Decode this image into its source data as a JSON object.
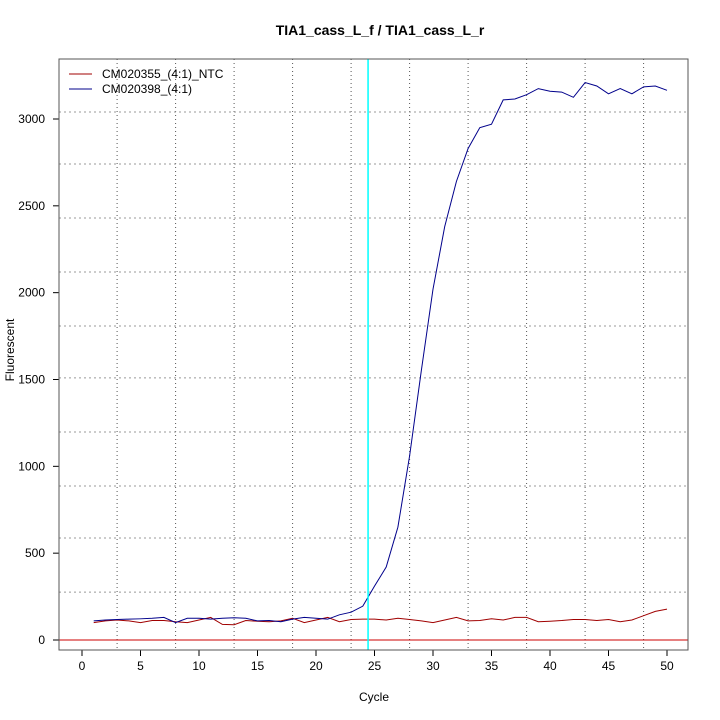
{
  "chart_data": {
    "type": "line",
    "title": "TIA1_cass_L_f / TIA1_cass_L_r",
    "xlabel": "Cycle",
    "ylabel": "Fluorescent",
    "xlim": [
      -2,
      52
    ],
    "ylim": [
      -60,
      3310
    ],
    "xticks": [
      0,
      5,
      10,
      15,
      20,
      25,
      30,
      35,
      40,
      45,
      50
    ],
    "yticks": [
      0,
      500,
      1000,
      1500,
      2000,
      2500,
      3000
    ],
    "grid_x": [
      3,
      8,
      13,
      18,
      23,
      28,
      33,
      38,
      43,
      48
    ],
    "grid_y": [
      276,
      587,
      887,
      1198,
      1509,
      1808,
      2119,
      2430,
      2741,
      3040
    ],
    "threshold_cycle": 24.45,
    "threshold_color": "#00ffff",
    "baseline_value": 0,
    "baseline_color": "#cc0000",
    "legend_position": "top-left",
    "x": [
      1,
      2,
      3,
      4,
      5,
      6,
      7,
      8,
      9,
      10,
      11,
      12,
      13,
      14,
      15,
      16,
      17,
      18,
      19,
      20,
      21,
      22,
      23,
      24,
      25,
      26,
      27,
      28,
      29,
      30,
      31,
      32,
      33,
      34,
      35,
      36,
      37,
      38,
      39,
      40,
      41,
      42,
      43,
      44,
      45,
      46,
      47,
      48,
      49,
      50
    ],
    "series": [
      {
        "name": "CM020355_(4:1)_NTC",
        "color": "#a00000",
        "values": [
          100,
          110,
          115,
          110,
          100,
          112,
          112,
          105,
          100,
          115,
          130,
          90,
          88,
          112,
          108,
          105,
          110,
          125,
          100,
          115,
          130,
          105,
          118,
          120,
          120,
          115,
          125,
          118,
          110,
          100,
          115,
          130,
          110,
          112,
          122,
          115,
          130,
          130,
          105,
          108,
          112,
          118,
          118,
          112,
          118,
          105,
          115,
          140,
          165,
          178
        ]
      },
      {
        "name": "CM020398_(4:1)",
        "color": "#00008b",
        "values": [
          110,
          115,
          118,
          120,
          122,
          125,
          130,
          100,
          125,
          125,
          120,
          125,
          128,
          125,
          110,
          112,
          105,
          120,
          130,
          125,
          120,
          145,
          160,
          195,
          310,
          420,
          650,
          1060,
          1550,
          2020,
          2380,
          2640,
          2830,
          2950,
          2970,
          3110,
          3115,
          3140,
          3175,
          3160,
          3155,
          3125,
          3210,
          3190,
          3145,
          3175,
          3145,
          3185,
          3190,
          3165
        ]
      }
    ]
  }
}
